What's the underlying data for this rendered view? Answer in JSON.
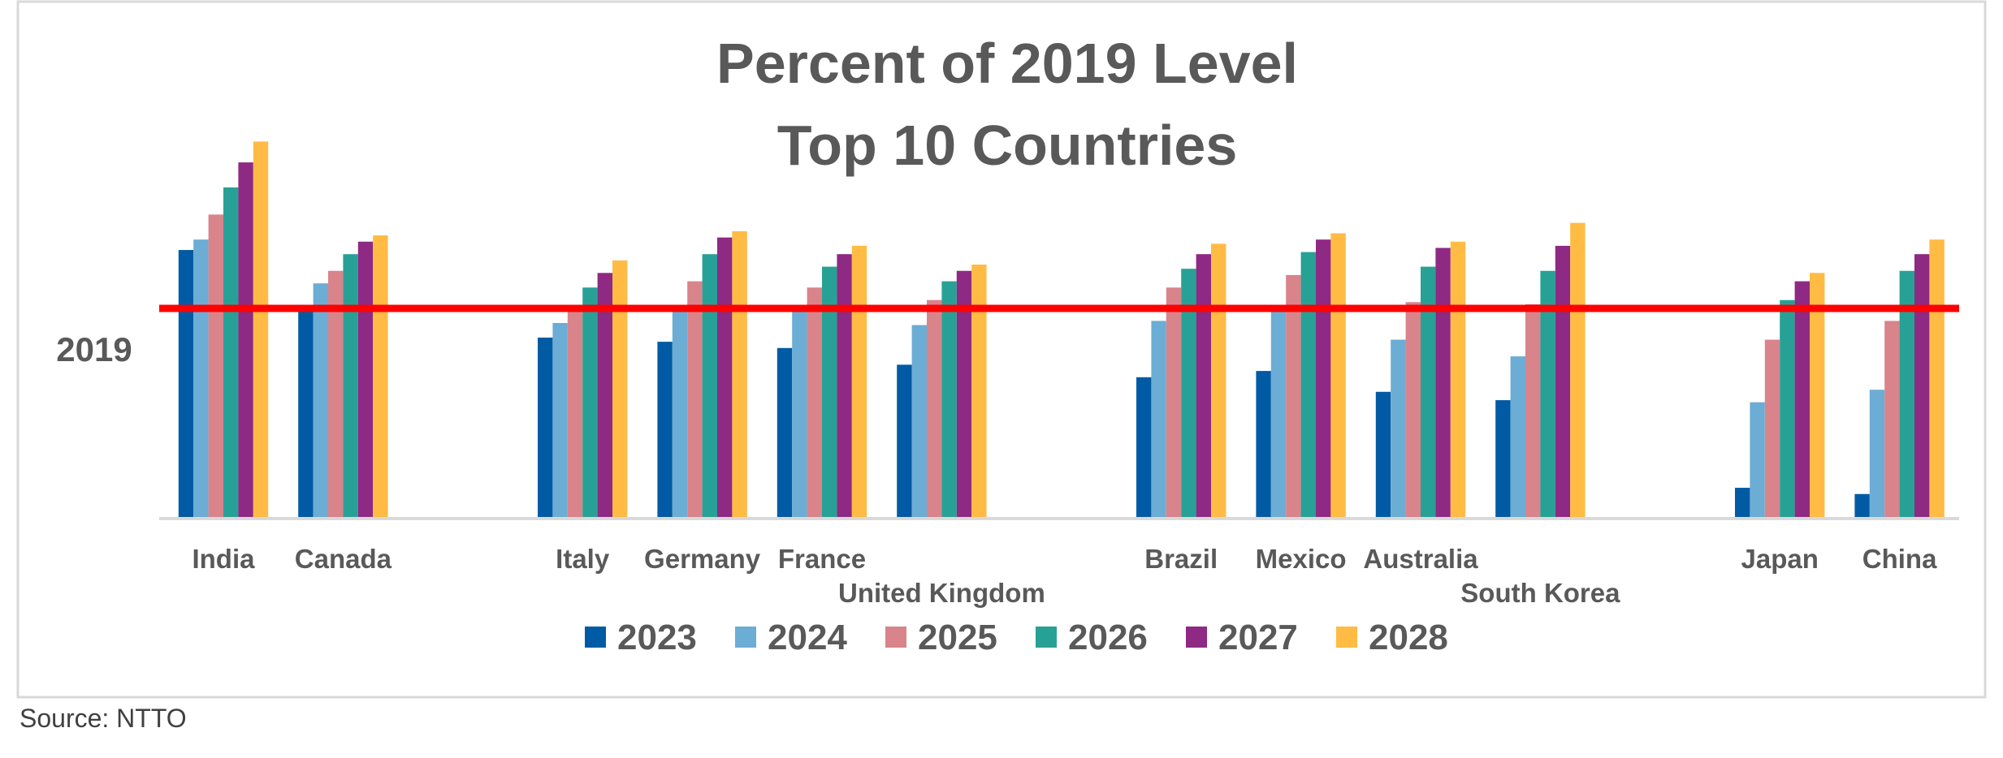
{
  "source": "Source: NTTO",
  "colors": {
    "reference_line": "#ff0000",
    "text": "#595959",
    "axis": "#d9d9d9"
  },
  "chart_data": {
    "type": "bar",
    "title": [
      "Percent of 2019 Level",
      "Top 10 Countries"
    ],
    "xlabel": "",
    "ylabel": "",
    "y_tick_labels": [
      "2019"
    ],
    "reference_line": {
      "value": 100,
      "label": "2019",
      "color": "#ff0000"
    },
    "ylim": [
      0,
      185
    ],
    "grid": false,
    "legend_position": "bottom",
    "categories": [
      "India",
      "Canada",
      "Italy",
      "Germany",
      "France",
      "United Kingdom",
      "Brazil",
      "Mexico",
      "Australia",
      "South Korea",
      "Japan",
      "China"
    ],
    "series": [
      {
        "name": "2023",
        "color": "#005ba4",
        "values": [
          128,
          99,
          86,
          84,
          81,
          73,
          67,
          70,
          60,
          56,
          14,
          11
        ]
      },
      {
        "name": "2024",
        "color": "#6badd4",
        "values": [
          133,
          112,
          93,
          100,
          99,
          92,
          94,
          100,
          85,
          77,
          55,
          61
        ]
      },
      {
        "name": "2025",
        "color": "#d9838b",
        "values": [
          145,
          118,
          101,
          113,
          110,
          104,
          110,
          116,
          103,
          102,
          85,
          94
        ]
      },
      {
        "name": "2026",
        "color": "#27a196",
        "values": [
          158,
          126,
          110,
          126,
          120,
          113,
          119,
          127,
          120,
          118,
          104,
          118
        ]
      },
      {
        "name": "2027",
        "color": "#8e2984",
        "values": [
          170,
          132,
          117,
          134,
          126,
          118,
          126,
          133,
          129,
          130,
          113,
          126
        ]
      },
      {
        "name": "2028",
        "color": "#ffbb44",
        "values": [
          180,
          135,
          123,
          137,
          130,
          121,
          131,
          136,
          132,
          141,
          117,
          133
        ]
      }
    ]
  }
}
